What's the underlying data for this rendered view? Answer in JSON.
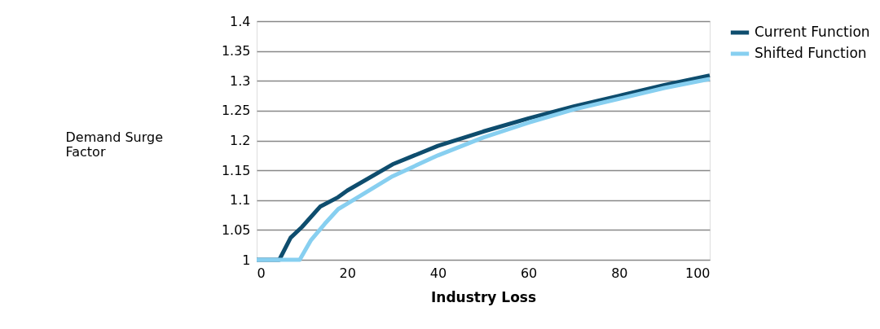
{
  "chart_data": {
    "type": "line",
    "xlabel": "Industry Loss",
    "ylabel": "Demand Surge Factor",
    "xlim": [
      0,
      100
    ],
    "xticks": [
      0,
      20,
      40,
      60,
      80,
      100
    ],
    "ylim": [
      1,
      1.4
    ],
    "yticks": [
      1,
      1.05,
      1.1,
      1.15,
      1.2,
      1.25,
      1.3,
      1.35,
      1.4
    ],
    "grid": "y",
    "legend": "right",
    "marker": "none",
    "line_style": "solid",
    "series": [
      {
        "name": "Current Function",
        "color": "#0e4d6e",
        "x": [
          0,
          5,
          7.5,
          10,
          14,
          18,
          20,
          30,
          40,
          50,
          60,
          70,
          80,
          90,
          100
        ],
        "values": [
          1,
          1,
          1.037,
          1.055,
          1.089,
          1.105,
          1.116,
          1.16,
          1.191,
          1.215,
          1.237,
          1.257,
          1.275,
          1.293,
          1.309
        ]
      },
      {
        "name": "Shifted Function",
        "color": "#87cff0",
        "x": [
          0,
          9.5,
          12,
          15,
          18,
          20,
          30,
          40,
          50,
          60,
          70,
          80,
          90,
          100
        ],
        "values": [
          1,
          1,
          1.033,
          1.06,
          1.085,
          1.094,
          1.14,
          1.175,
          1.205,
          1.23,
          1.252,
          1.27,
          1.288,
          1.303
        ]
      }
    ]
  }
}
